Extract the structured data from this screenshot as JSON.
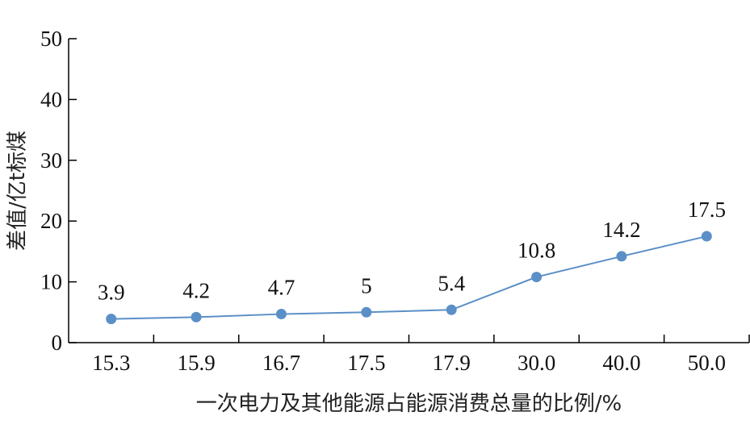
{
  "chart_data": {
    "type": "line",
    "categories": [
      "15.3",
      "15.9",
      "16.7",
      "17.5",
      "17.9",
      "30.0",
      "40.0",
      "50.0"
    ],
    "series": [
      {
        "values": [
          3.9,
          4.2,
          4.7,
          5,
          5.4,
          10.8,
          14.2,
          17.5
        ]
      }
    ],
    "data_labels": [
      "3.9",
      "4.2",
      "4.7",
      "5",
      "5.4",
      "10.8",
      "14.2",
      "17.5"
    ],
    "xlabel": "一次电力及其他能源占能源消费总量的比例/%",
    "ylabel": "差值/亿t标煤",
    "ylim": [
      0,
      50
    ],
    "yticks": [
      0,
      10,
      20,
      30,
      40,
      50
    ],
    "grid": false,
    "line_color": "#5b8fc7",
    "marker_color": "#5b8fc7",
    "axis_color": "#000000"
  }
}
